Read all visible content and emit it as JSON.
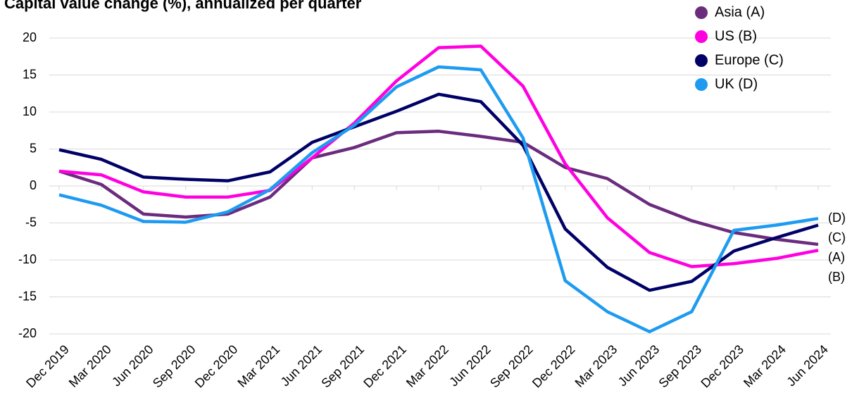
{
  "chart_data": {
    "type": "line",
    "title": "Capital value change (%), annualized per quarter",
    "categories": [
      "Dec 2019",
      "Mar 2020",
      "Jun 2020",
      "Sep 2020",
      "Dec 2020",
      "Mar 2021",
      "Jun 2021",
      "Sep 2021",
      "Dec 2021",
      "Mar 2022",
      "Jun 2022",
      "Sep 2022",
      "Dec 2022",
      "Mar 2023",
      "Jun 2023",
      "Sep 2023",
      "Dec 2023",
      "Mar 2024",
      "Jun 2024"
    ],
    "series": [
      {
        "name": "Asia (A)",
        "end_label": "(A)",
        "color": "#6b2c7e",
        "values": [
          2.0,
          0.2,
          -3.8,
          -4.2,
          -3.8,
          -1.5,
          3.8,
          5.2,
          7.2,
          7.4,
          6.7,
          5.9,
          2.5,
          1.0,
          -2.5,
          -4.7,
          -6.3,
          -7.2,
          -7.9
        ]
      },
      {
        "name": "US (B)",
        "end_label": "(B)",
        "color": "#ff00e0",
        "values": [
          2.0,
          1.5,
          -0.8,
          -1.5,
          -1.5,
          -0.6,
          3.8,
          8.5,
          14.2,
          18.7,
          18.9,
          13.5,
          3.0,
          -4.3,
          -9.0,
          -10.9,
          -10.5,
          -9.8,
          -8.7
        ]
      },
      {
        "name": "Europe (C)",
        "end_label": "(C)",
        "color": "#000066",
        "values": [
          4.9,
          3.6,
          1.2,
          0.9,
          0.7,
          1.9,
          5.9,
          8.0,
          10.1,
          12.4,
          11.4,
          5.5,
          -5.8,
          -11.0,
          -14.1,
          -12.9,
          -8.8,
          -7.0,
          -5.3
        ]
      },
      {
        "name": "UK (D)",
        "end_label": "(D)",
        "color": "#1e9bf0",
        "values": [
          -1.2,
          -2.6,
          -4.8,
          -4.9,
          -3.5,
          -0.5,
          4.5,
          8.2,
          13.4,
          16.1,
          15.7,
          6.5,
          -12.8,
          -17.0,
          -19.7,
          -17.0,
          -6.0,
          -5.3,
          -4.4
        ]
      }
    ],
    "ylim": [
      -20,
      20
    ],
    "yticks": [
      -20,
      -15,
      -10,
      -5,
      0,
      5,
      10,
      15,
      20
    ],
    "grid": true,
    "legend": "top-right"
  }
}
